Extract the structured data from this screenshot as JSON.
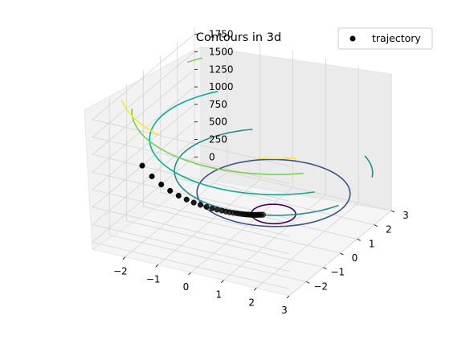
{
  "chart_data": {
    "type": "scatter",
    "projection": "3d",
    "title": "Contours in 3d",
    "legend": {
      "placement": "top-right",
      "entries": [
        "trajectory"
      ]
    },
    "x_ticks": [
      "−2",
      "−1",
      "0",
      "1",
      "2",
      "3"
    ],
    "y_ticks": [
      "−2",
      "−1",
      "0",
      "1",
      "2",
      "3"
    ],
    "z_ticks": [
      "0",
      "250",
      "500",
      "750",
      "1000",
      "1250",
      "1500",
      "1750"
    ],
    "grid": true,
    "series": [
      {
        "name": "trajectory",
        "marker": "o",
        "color": "#000000",
        "points": [
          [
            -2.0,
            -2.0,
            1000.0
          ],
          [
            -1.86,
            -1.7,
            802.0
          ],
          [
            -1.72,
            -1.42,
            645.0
          ],
          [
            -1.58,
            -1.17,
            520.0
          ],
          [
            -1.44,
            -0.94,
            419.0
          ],
          [
            -1.3,
            -0.74,
            339.0
          ],
          [
            -1.17,
            -0.57,
            275.0
          ],
          [
            -1.05,
            -0.41,
            224.0
          ],
          [
            -0.93,
            -0.28,
            183.0
          ],
          [
            -0.82,
            -0.17,
            150.0
          ],
          [
            -0.72,
            -0.07,
            123.0
          ],
          [
            -0.62,
            0.02,
            102.0
          ],
          [
            -0.53,
            0.09,
            85.0
          ],
          [
            -0.45,
            0.15,
            71.0
          ],
          [
            -0.37,
            0.21,
            60.0
          ],
          [
            -0.3,
            0.26,
            51.0
          ],
          [
            -0.24,
            0.3,
            44.0
          ],
          [
            -0.18,
            0.34,
            38.0
          ],
          [
            -0.13,
            0.37,
            34.0
          ],
          [
            -0.08,
            0.4,
            30.0
          ],
          [
            -0.04,
            0.43,
            28.0
          ],
          [
            0.0,
            0.45,
            26.0
          ],
          [
            0.04,
            0.47,
            24.0
          ],
          [
            0.07,
            0.49,
            23.0
          ],
          [
            0.1,
            0.51,
            22.0
          ],
          [
            0.13,
            0.53,
            21.0
          ],
          [
            0.16,
            0.55,
            20.5
          ],
          [
            0.19,
            0.57,
            20.0
          ],
          [
            0.22,
            0.59,
            19.6
          ],
          [
            0.25,
            0.61,
            19.3
          ],
          [
            0.28,
            0.63,
            19.0
          ],
          [
            0.31,
            0.65,
            18.8
          ]
        ]
      }
    ],
    "contours": [
      {
        "level": 0,
        "color": "#440154"
      },
      {
        "level": 300,
        "color": "#3b528b"
      },
      {
        "level": 600,
        "color": "#21908d"
      },
      {
        "level": 1050,
        "color": "#00b39a"
      },
      {
        "level": 1450,
        "color": "#7ad151"
      },
      {
        "level": 1750,
        "color": "#fde725"
      }
    ]
  }
}
